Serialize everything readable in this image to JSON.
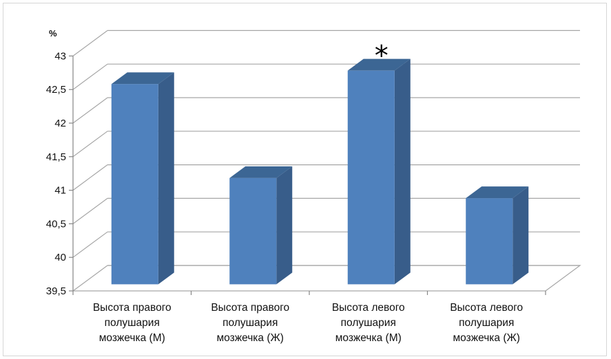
{
  "chart_data": {
    "type": "bar",
    "style": "3d-column",
    "categories": [
      [
        "Высота правого",
        "полушария",
        "мозжечка (М)"
      ],
      [
        "Высота правого",
        "полушария",
        "мозжечка (Ж)"
      ],
      [
        "Высота левого",
        "полушария",
        "мозжечка (М)"
      ],
      [
        "Высота левого",
        "полушария",
        "мозжечка (Ж)"
      ]
    ],
    "values": [
      42.5,
      41.1,
      42.7,
      40.8
    ],
    "y_unit_label": "%",
    "ylim": [
      39.5,
      43
    ],
    "y_ticks": [
      "39,5",
      "40",
      "40,5",
      "41",
      "41,5",
      "42",
      "42,5",
      "43"
    ],
    "annotations": [
      {
        "category_index": 2,
        "text": "*"
      }
    ],
    "grid": true,
    "colors": {
      "bar_front": "#4f81bd",
      "bar_side": "#385d8a",
      "bar_top": "#3c6694",
      "grid": "#a6a6a6",
      "axis": "#868686"
    }
  }
}
